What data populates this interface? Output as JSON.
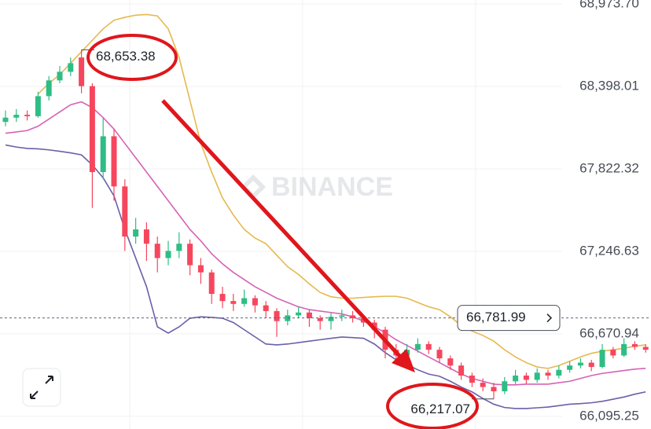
{
  "chart_data": {
    "type": "candlestick",
    "watermark": "BINANCE",
    "ylim": [
      66007,
      69001
    ],
    "yticks": [
      {
        "value": 68973.7,
        "label": "68,973.70"
      },
      {
        "value": 68398.01,
        "label": "68,398.01"
      },
      {
        "value": 67822.32,
        "label": "67,822.32"
      },
      {
        "value": 67246.63,
        "label": "67,246.63"
      },
      {
        "value": 66670.94,
        "label": "66,670.94"
      },
      {
        "value": 66095.25,
        "label": "66,095.25"
      }
    ],
    "grid": true,
    "up_color": "#2ebd85",
    "down_color": "#f6465d",
    "open": [
      68150,
      68180,
      68200,
      68190,
      68330,
      68440,
      68500,
      68600,
      68400,
      67800,
      68050,
      67700,
      67350,
      67400,
      67300,
      67200,
      67250,
      67300,
      67150,
      67100,
      66950,
      66900,
      66880,
      66920,
      66870,
      66830,
      66760,
      66800,
      66820,
      66780,
      66760,
      66790,
      66800,
      66780,
      66750,
      66700,
      66560,
      66520,
      66560,
      66600,
      66560,
      66500,
      66450,
      66380,
      66330,
      66300,
      66270,
      66340,
      66380,
      66350,
      66400,
      66380,
      66420,
      66450,
      66470,
      66440,
      66560,
      66520,
      66600,
      66580
    ],
    "high": [
      68230,
      68240,
      68230,
      68360,
      68470,
      68540,
      68600,
      68653.38,
      68420,
      68180,
      68100,
      67750,
      67480,
      67450,
      67350,
      67320,
      67380,
      67330,
      67200,
      67120,
      67000,
      66950,
      66980,
      66940,
      66900,
      66850,
      66840,
      66860,
      66840,
      66800,
      66820,
      66840,
      66830,
      66800,
      66770,
      66720,
      66600,
      66600,
      66640,
      66620,
      66580,
      66520,
      66470,
      66400,
      66360,
      66330,
      66370,
      66420,
      66400,
      66430,
      66420,
      66450,
      66480,
      66500,
      66490,
      66600,
      66580,
      66640,
      66620,
      66600
    ],
    "low": [
      68120,
      68150,
      68160,
      68180,
      68300,
      68420,
      68470,
      68350,
      67550,
      67750,
      67600,
      67250,
      67300,
      67180,
      67100,
      67150,
      67200,
      67080,
      67020,
      66880,
      66850,
      66830,
      66860,
      66820,
      66780,
      66650,
      66730,
      66780,
      66720,
      66700,
      66700,
      66760,
      66750,
      66720,
      66640,
      66500,
      66480,
      66500,
      66540,
      66530,
      66470,
      66420,
      66350,
      66300,
      66270,
      66217.07,
      66250,
      66320,
      66320,
      66330,
      66350,
      66360,
      66400,
      66430,
      66410,
      66430,
      66500,
      66510,
      66560,
      66540
    ],
    "close": [
      68180,
      68200,
      68190,
      68330,
      68440,
      68500,
      68560,
      68400,
      67800,
      68050,
      67700,
      67350,
      67400,
      67300,
      67200,
      67250,
      67300,
      67150,
      67100,
      66950,
      66900,
      66880,
      66920,
      66870,
      66830,
      66760,
      66800,
      66820,
      66780,
      66760,
      66790,
      66800,
      66780,
      66750,
      66700,
      66560,
      66520,
      66560,
      66600,
      66560,
      66500,
      66450,
      66380,
      66330,
      66300,
      66270,
      66340,
      66380,
      66350,
      66400,
      66380,
      66420,
      66450,
      66470,
      66440,
      66560,
      66520,
      66600,
      66580,
      66560
    ],
    "bands": [
      {
        "color": "#e6b94f",
        "values": [
          null,
          null,
          null,
          68345,
          68420,
          68480,
          68560,
          68640,
          68720,
          68800,
          68860,
          68880,
          68895,
          68900,
          68890,
          68800,
          68600,
          68300,
          68000,
          67800,
          67620,
          67500,
          67400,
          67340,
          67300,
          67220,
          67140,
          67086,
          67020,
          66960,
          66930,
          66920,
          66920,
          66925,
          66930,
          66933,
          66933,
          66920,
          66890,
          66860,
          66840,
          66790,
          66730,
          66690,
          66660,
          66620,
          66560,
          66510,
          66470,
          66440,
          66430,
          66450,
          66480,
          66510,
          66535,
          66550,
          66560,
          66570,
          66585,
          66594
        ]
      },
      {
        "color": "#d563b6",
        "values": [
          68071,
          68080,
          68090,
          68120,
          68170,
          68220,
          68270,
          68290,
          68250,
          68180,
          68100,
          68000,
          67900,
          67800,
          67700,
          67600,
          67500,
          67400,
          67320,
          67230,
          67160,
          67100,
          67050,
          67000,
          66960,
          66920,
          66890,
          66860,
          66840,
          66830,
          66820,
          66810,
          66790,
          66760,
          66720,
          66680,
          66630,
          66590,
          66550,
          66510,
          66470,
          66430,
          66390,
          66360,
          66340,
          66320,
          66315,
          66315,
          66320,
          66320,
          66320,
          66330,
          66340,
          66360,
          66380,
          66395,
          66405,
          66415,
          66425,
          66430
        ]
      },
      {
        "color": "#6c5fa8",
        "values": [
          67989,
          67975,
          67965,
          67962,
          67955,
          67945,
          67934,
          67920,
          67850,
          67760,
          67634,
          67400,
          67200,
          67000,
          66720,
          66676,
          66720,
          66780,
          66790,
          66786,
          66780,
          66750,
          66700,
          66650,
          66600,
          66594,
          66600,
          66610,
          66620,
          66630,
          66640,
          66649,
          66645,
          66640,
          66600,
          66540,
          66490,
          66457,
          66420,
          66390,
          66375,
          66340,
          66300,
          66266,
          66220,
          66180,
          66157,
          66150,
          66150,
          66155,
          66160,
          66170,
          66180,
          66184,
          66190,
          66200,
          66215,
          66230,
          66250,
          66266
        ]
      }
    ],
    "annotations": [
      {
        "value": 68653.38,
        "label": "68,653.38"
      },
      {
        "value": 66217.07,
        "label": "66,217.07"
      }
    ],
    "last_price": {
      "value": 66781.99,
      "label": "66,781.99"
    }
  }
}
